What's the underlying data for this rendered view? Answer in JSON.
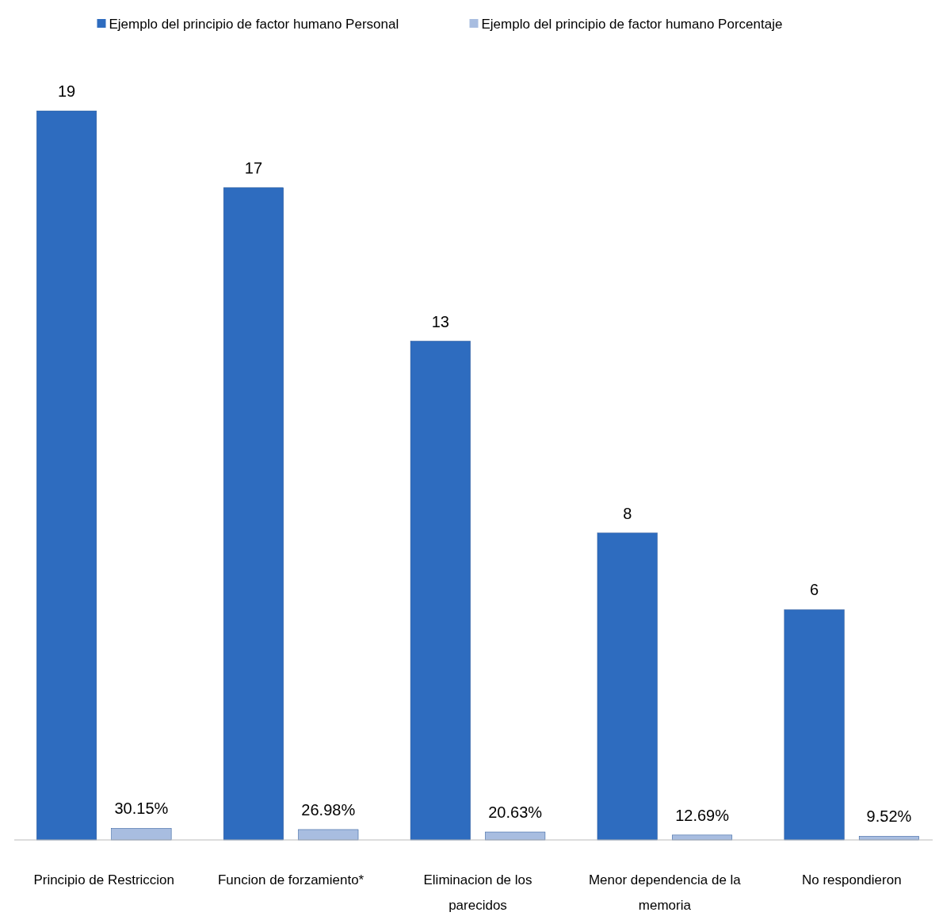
{
  "chart_data": {
    "type": "bar",
    "categories": [
      "Principio de Restriccion",
      "Funcion de forzamiento*",
      "Eliminacion de los parecidos",
      "Menor dependencia de la memoria",
      "No respondieron"
    ],
    "series": [
      {
        "name": "Ejemplo del principio de factor humano Personal",
        "color": "#2e6cbf",
        "values": [
          19,
          17,
          13,
          8,
          6
        ],
        "value_labels": [
          "19",
          "17",
          "13",
          "8",
          "6"
        ]
      },
      {
        "name": "Ejemplo del principio de factor humano Porcentaje",
        "color": "#a8bde0",
        "values": [
          0.3015,
          0.2698,
          0.2063,
          0.1269,
          0.0952
        ],
        "value_labels": [
          "30.15%",
          "26.98%",
          "20.63%",
          "12.69%",
          "9.52%"
        ]
      }
    ],
    "legend": "top",
    "grid": false
  }
}
